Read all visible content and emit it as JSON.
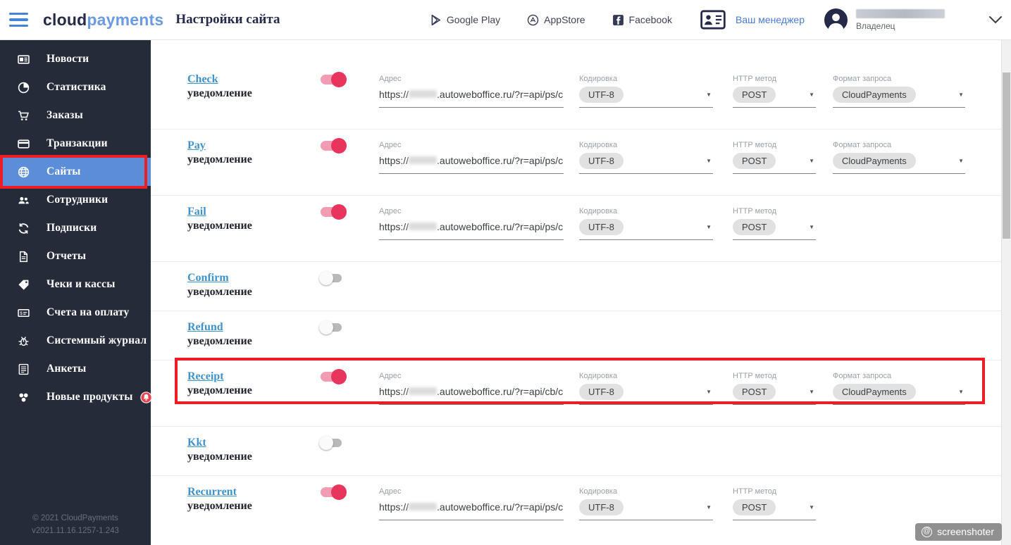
{
  "header": {
    "logo": {
      "part1": "cloud",
      "part2": "payments"
    },
    "title": "Настройки сайта",
    "store_links": [
      {
        "label": "Google Play",
        "icon": "google-play-icon"
      },
      {
        "label": "AppStore",
        "icon": "appstore-icon"
      },
      {
        "label": "Facebook",
        "icon": "facebook-icon"
      }
    ],
    "manager_link": "Ваш менеджер",
    "user": {
      "role": "Владелец"
    }
  },
  "sidebar": {
    "items": [
      {
        "label": "Новости",
        "icon": "newspaper-icon"
      },
      {
        "label": "Статистика",
        "icon": "pie-chart-icon"
      },
      {
        "label": "Заказы",
        "icon": "cart-icon"
      },
      {
        "label": "Транзакции",
        "icon": "credit-card-icon"
      },
      {
        "label": "Сайты",
        "icon": "globe-icon",
        "active": true,
        "highlighted": true
      },
      {
        "label": "Сотрудники",
        "icon": "people-icon"
      },
      {
        "label": "Подписки",
        "icon": "sync-icon"
      },
      {
        "label": "Отчеты",
        "icon": "document-icon"
      },
      {
        "label": "Чеки и кассы",
        "icon": "tag-icon"
      },
      {
        "label": "Счета на оплату",
        "icon": "invoice-icon"
      },
      {
        "label": "Системный журнал",
        "icon": "bug-icon"
      },
      {
        "label": "Анкеты",
        "icon": "form-icon"
      },
      {
        "label": "Новые продукты",
        "icon": "products-icon",
        "badge": "bell-icon"
      }
    ],
    "footer": {
      "line1": "© 2021 CloudPayments",
      "line2": "v2021.11.16.1257-1.243"
    }
  },
  "labels": {
    "notification": "уведомление",
    "address": "Адрес",
    "encoding": "Кодировка",
    "method": "HTTP метод",
    "format": "Формат запроса"
  },
  "rows": [
    {
      "name": "Check",
      "enabled": true,
      "url_prefix": "https://",
      "url_redacted": true,
      "url_suffix": ".autoweboffice.ru/?r=api/ps/clo",
      "encoding": "UTF-8",
      "method": "POST",
      "format": "CloudPayments"
    },
    {
      "name": "Pay",
      "enabled": true,
      "url_prefix": "https://",
      "url_redacted": true,
      "url_suffix": ".autoweboffice.ru/?r=api/ps/clo",
      "encoding": "UTF-8",
      "method": "POST",
      "format": "CloudPayments"
    },
    {
      "name": "Fail",
      "enabled": true,
      "url_prefix": "https://",
      "url_redacted": true,
      "url_suffix": ".autoweboffice.ru/?r=api/ps/clo",
      "encoding": "UTF-8",
      "method": "POST"
    },
    {
      "name": "Confirm",
      "enabled": false
    },
    {
      "name": "Refund",
      "enabled": false
    },
    {
      "name": "Receipt",
      "enabled": true,
      "highlighted": true,
      "url_prefix": "https://",
      "url_redacted": true,
      "url_suffix": ".autoweboffice.ru/?r=api/cb/clo",
      "encoding": "UTF-8",
      "method": "POST",
      "format": "CloudPayments"
    },
    {
      "name": "Kkt",
      "enabled": false
    },
    {
      "name": "Recurrent",
      "enabled": true,
      "url_prefix": "https://",
      "url_redacted": true,
      "url_suffix": ".autoweboffice.ru/?r=api/ps/clo",
      "encoding": "UTF-8",
      "method": "POST"
    }
  ],
  "watermark": {
    "label": "screenshoter"
  },
  "colors": {
    "sidebar-bg": "#262b3a",
    "sidebar-active": "#5b8dd9",
    "dark-navy": "#252a48",
    "logo-blue": "#6c9be2",
    "hamburger-blue": "#4285d6",
    "link-blue": "#4a7bd0",
    "row-link-blue": "#3f93cc",
    "toggle-on-knob": "#e8355e",
    "toggle-on-track": "#f29cb4",
    "highlight-red": "#ee1c25",
    "badge-red": "#e8424c"
  }
}
